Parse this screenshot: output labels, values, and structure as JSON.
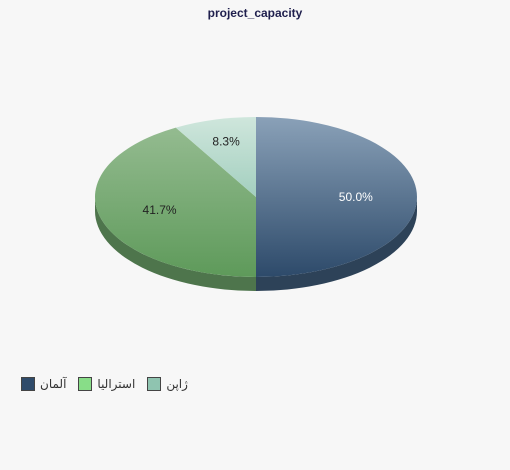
{
  "chart_data": {
    "type": "pie",
    "title": "project_capacity",
    "categories": [
      "آلمان",
      "استرالیا",
      "ژاپن"
    ],
    "values": [
      50.0,
      41.7,
      8.3
    ],
    "labels": [
      "50.0%",
      "41.7%",
      "8.3%"
    ],
    "colors": [
      "#3f5b7a",
      "#6da26a",
      "#a9d3c4"
    ],
    "legend_colors": [
      "#2f4b6a",
      "#88dd88",
      "#8fc4b0"
    ],
    "legend_placement": "bottom-left",
    "style": "3d"
  }
}
